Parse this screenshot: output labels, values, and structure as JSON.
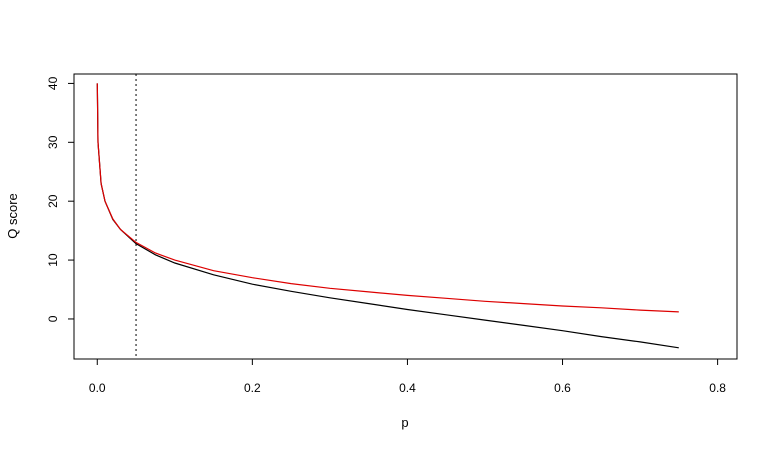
{
  "chart_data": {
    "type": "line",
    "title": "",
    "xlabel": "p",
    "ylabel": "Q score",
    "xlim": [
      -0.03,
      0.825
    ],
    "ylim": [
      -6.8,
      41.6
    ],
    "x_ticks": [
      "0.0",
      "0.2",
      "0.4",
      "0.6",
      "0.8"
    ],
    "y_ticks": [
      "0",
      "10",
      "20",
      "30",
      "40"
    ],
    "grid": false,
    "legend": "none",
    "vline": {
      "x": 0.05,
      "style": "dotted",
      "color": "#000000"
    },
    "series": [
      {
        "color": "#000000",
        "x": [
          0.0001,
          0.001,
          0.005,
          0.01,
          0.02,
          0.03,
          0.05,
          0.075,
          0.1,
          0.15,
          0.2,
          0.25,
          0.3,
          0.35,
          0.4,
          0.45,
          0.5,
          0.55,
          0.6,
          0.65,
          0.7,
          0.75
        ],
        "y": [
          40.0,
          30.0,
          23.0,
          20.0,
          16.9,
          15.2,
          12.8,
          10.9,
          9.5,
          7.5,
          5.9,
          4.7,
          3.6,
          2.6,
          1.6,
          0.7,
          -0.2,
          -1.1,
          -2.0,
          -3.0,
          -3.9,
          -4.9
        ]
      },
      {
        "color": "#dd0000",
        "x": [
          0.0001,
          0.001,
          0.005,
          0.01,
          0.02,
          0.03,
          0.05,
          0.075,
          0.1,
          0.15,
          0.2,
          0.25,
          0.3,
          0.35,
          0.4,
          0.45,
          0.5,
          0.55,
          0.6,
          0.65,
          0.7,
          0.75
        ],
        "y": [
          40.0,
          30.0,
          23.0,
          20.0,
          17.0,
          15.2,
          13.0,
          11.2,
          10.0,
          8.2,
          7.0,
          6.0,
          5.2,
          4.6,
          4.0,
          3.5,
          3.0,
          2.6,
          2.2,
          1.9,
          1.5,
          1.2
        ]
      }
    ]
  }
}
